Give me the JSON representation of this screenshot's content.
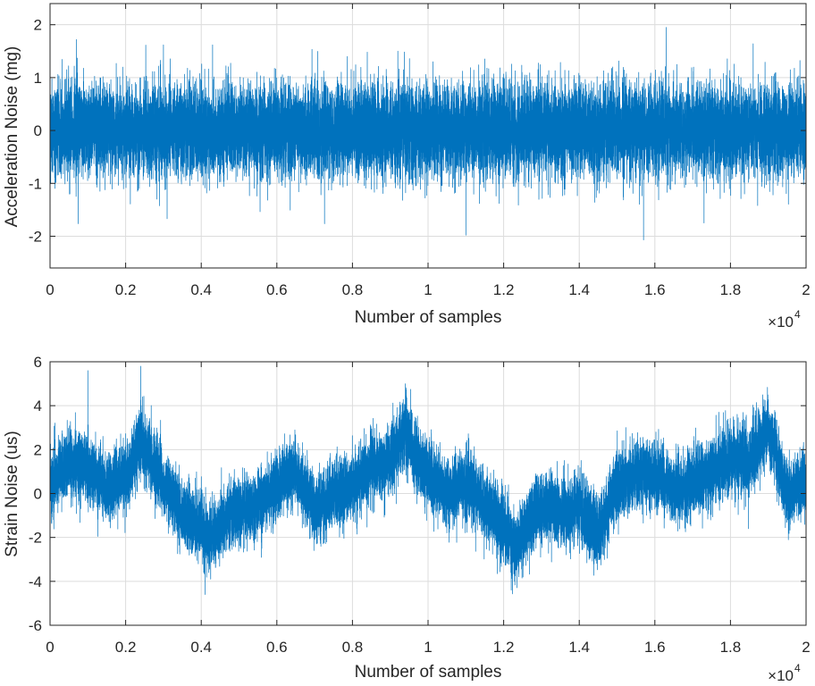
{
  "colors": {
    "series": "#0072BD",
    "axis": "#262626",
    "grid": "#dcdcdc",
    "background": "#ffffff"
  },
  "chart_data": [
    {
      "type": "line",
      "title": "",
      "xlabel": "Number of samples",
      "ylabel": "Acceleration Noise (mg)",
      "xlim": [
        0,
        2
      ],
      "ylim": [
        -2.6,
        2.4
      ],
      "x_ticks": [
        0,
        0.2,
        0.4,
        0.6,
        0.8,
        1,
        1.2,
        1.4,
        1.6,
        1.8,
        2
      ],
      "x_tick_labels": [
        "0",
        "0.2",
        "0.4",
        "0.6",
        "0.8",
        "1",
        "1.2",
        "1.4",
        "1.6",
        "1.8",
        "2"
      ],
      "y_ticks": [
        -2,
        -1,
        0,
        1,
        2
      ],
      "y_tick_labels": [
        "-2",
        "-1",
        "0",
        "1",
        "2"
      ],
      "x_scale_base": "×10",
      "x_scale_exponent": "4",
      "grid": true,
      "series": [
        {
          "name": "Acceleration noise",
          "n_samples": 20000,
          "x_range": [
            0,
            20000
          ],
          "mean": 0,
          "std": 0.42,
          "approx_range": [
            -2.05,
            1.95
          ],
          "peaks": [
            [
              700,
              1.72
            ],
            [
              3000,
              1.62
            ],
            [
              4300,
              1.62
            ],
            [
              9200,
              1.5
            ],
            [
              11000,
              -1.98
            ],
            [
              15700,
              -2.07
            ],
            [
              16300,
              1.95
            ],
            [
              17300,
              -1.75
            ],
            [
              18600,
              1.64
            ]
          ]
        }
      ]
    },
    {
      "type": "line",
      "title": "",
      "xlabel": "Number of samples",
      "ylabel": "Strain Noise (us)",
      "xlim": [
        0,
        2
      ],
      "ylim": [
        -6,
        6
      ],
      "x_ticks": [
        0,
        0.2,
        0.4,
        0.6,
        0.8,
        1,
        1.2,
        1.4,
        1.6,
        1.8,
        2
      ],
      "x_tick_labels": [
        "0",
        "0.2",
        "0.4",
        "0.6",
        "0.8",
        "1",
        "1.2",
        "1.4",
        "1.6",
        "1.8",
        "2"
      ],
      "y_ticks": [
        -6,
        -4,
        -2,
        0,
        2,
        4,
        6
      ],
      "y_tick_labels": [
        "-6",
        "-4",
        "-2",
        "0",
        "2",
        "4",
        "6"
      ],
      "x_scale_base": "×10",
      "x_scale_exponent": "4",
      "grid": true,
      "series": [
        {
          "name": "Strain noise",
          "n_samples": 20000,
          "x_range": [
            0,
            20000
          ],
          "trend_x": [
            0,
            500,
            1000,
            1500,
            2000,
            2400,
            3000,
            3500,
            4000,
            4200,
            4700,
            5000,
            5500,
            6000,
            6500,
            7000,
            7500,
            8000,
            8500,
            9000,
            9400,
            9800,
            10200,
            10600,
            11000,
            11500,
            12000,
            12300,
            12800,
            13200,
            13600,
            14000,
            14500,
            15000,
            15500,
            16000,
            16500,
            17000,
            17500,
            18000,
            18500,
            19000,
            19500,
            20000
          ],
          "trend_y": [
            0.5,
            1.5,
            1.2,
            0.2,
            0.8,
            2.5,
            0.5,
            -1.0,
            -1.5,
            -2.2,
            -1.0,
            -0.8,
            -0.5,
            0.5,
            1.0,
            -0.8,
            0.0,
            0.3,
            1.2,
            1.5,
            2.8,
            1.2,
            0.5,
            0.0,
            0.5,
            -0.5,
            -1.5,
            -2.5,
            -1.0,
            -0.5,
            -1.0,
            -0.5,
            -2.0,
            0.5,
            0.8,
            1.0,
            0.0,
            0.5,
            1.0,
            1.5,
            1.5,
            3.0,
            0.0,
            0.5
          ],
          "noise_std": 1.0,
          "approx_range": [
            -4.6,
            5.8
          ],
          "peaks": [
            [
              1000,
              5.6
            ],
            [
              2400,
              5.8
            ],
            [
              4100,
              -4.6
            ],
            [
              9400,
              5.0
            ],
            [
              12200,
              -4.4
            ]
          ]
        }
      ]
    }
  ]
}
